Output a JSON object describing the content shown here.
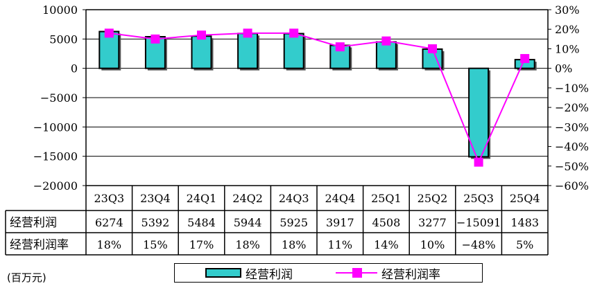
{
  "chart_data": {
    "type": "bar",
    "categories": [
      "23Q3",
      "23Q4",
      "24Q1",
      "24Q2",
      "24Q3",
      "24Q4",
      "25Q1",
      "25Q2",
      "25Q3",
      "25Q4"
    ],
    "series": [
      {
        "name": "经营利润",
        "type": "bar",
        "axis": "left",
        "values": [
          6274,
          5392,
          5484,
          5944,
          5925,
          3917,
          4508,
          3277,
          -15091,
          1483
        ],
        "display": [
          "6274",
          "5392",
          "5484",
          "5944",
          "5925",
          "3917",
          "4508",
          "3277",
          "-15091",
          "1483"
        ]
      },
      {
        "name": "经营利润率",
        "type": "line",
        "axis": "right",
        "values": [
          18,
          15,
          17,
          18,
          18,
          11,
          14,
          10,
          -48,
          5
        ],
        "display": [
          "18%",
          "15%",
          "17%",
          "18%",
          "18%",
          "11%",
          "14%",
          "10%",
          "-48%",
          "5%"
        ]
      }
    ],
    "y_left": {
      "ylim": [
        -20000,
        10000
      ],
      "ticks": [
        {
          "v": 10000,
          "label": "10000"
        },
        {
          "v": 5000,
          "label": "5000"
        },
        {
          "v": 0,
          "label": "0"
        },
        {
          "v": -5000,
          "label": "-5000"
        },
        {
          "v": -10000,
          "label": "-10000"
        },
        {
          "v": -15000,
          "label": "-15000"
        },
        {
          "v": -20000,
          "label": "-20000"
        }
      ]
    },
    "y_right": {
      "ylim": [
        -60,
        30
      ],
      "ticks": [
        {
          "v": 30,
          "label": "30%"
        },
        {
          "v": 20,
          "label": "20%"
        },
        {
          "v": 10,
          "label": "10%"
        },
        {
          "v": 0,
          "label": "0%"
        },
        {
          "v": -10,
          "label": "-10%"
        },
        {
          "v": -20,
          "label": "-20%"
        },
        {
          "v": -30,
          "label": "-30%"
        },
        {
          "v": -40,
          "label": "-40%"
        },
        {
          "v": -50,
          "label": "-50%"
        },
        {
          "v": -60,
          "label": "-60%"
        }
      ]
    },
    "grid": true,
    "legend": "bottom",
    "colors": {
      "bar": "#33cccc",
      "line": "#ff00ff",
      "axis": "#000000"
    },
    "unit_label": "(百万元)"
  }
}
